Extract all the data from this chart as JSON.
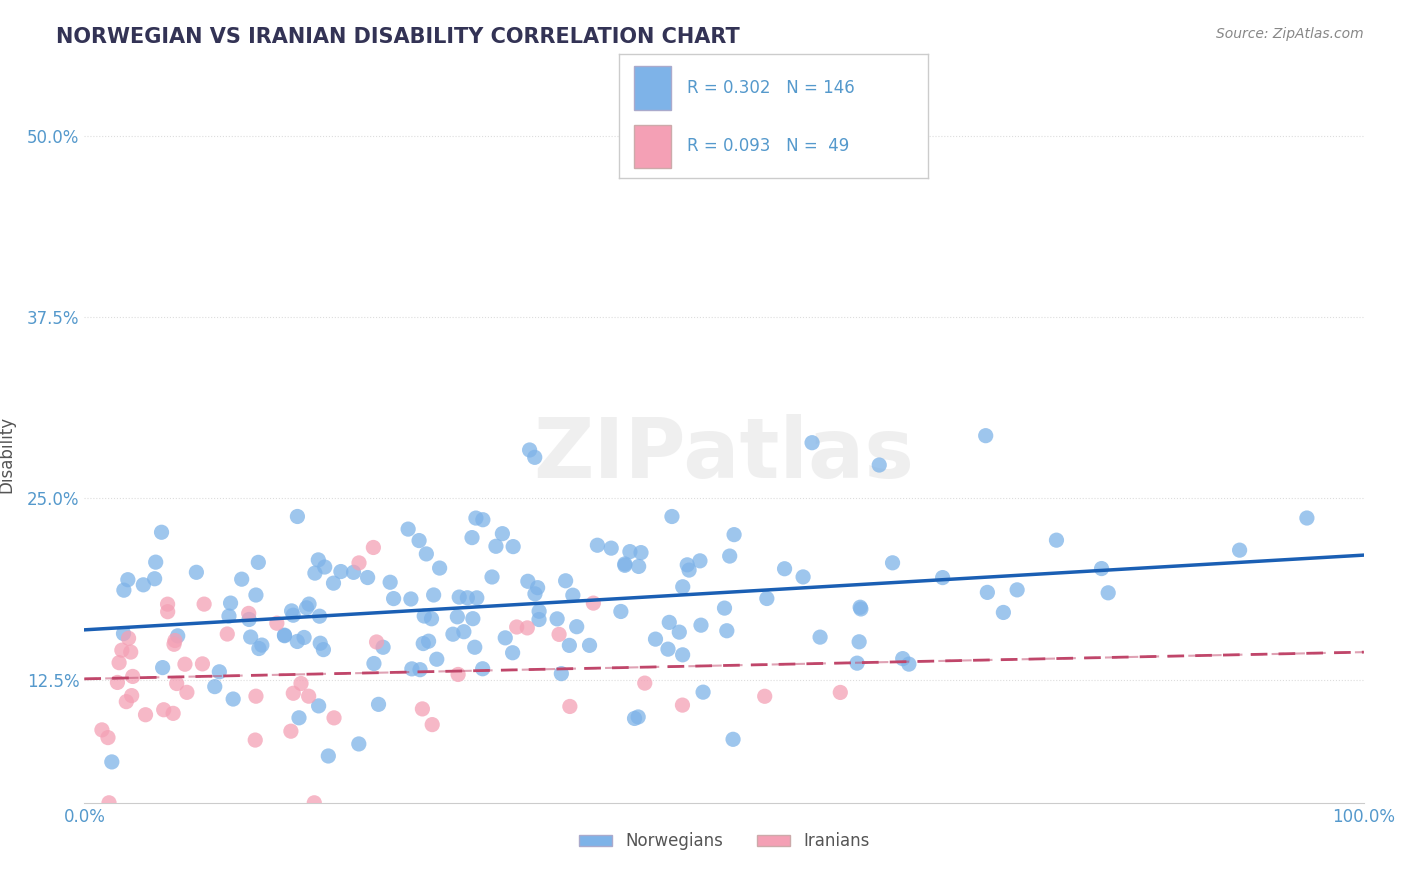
{
  "title": "NORWEGIAN VS IRANIAN DISABILITY CORRELATION CHART",
  "source": "Source: ZipAtlas.com",
  "ylabel": "Disability",
  "xlabel": "",
  "xlim": [
    0,
    1.0
  ],
  "ylim": [
    0.04,
    0.52
  ],
  "yticks": [
    0.125,
    0.25,
    0.375,
    0.5
  ],
  "ytick_labels": [
    "12.5%",
    "25.0%",
    "37.5%",
    "50.0%"
  ],
  "xticks": [
    0.0,
    0.1,
    0.2,
    0.3,
    0.4,
    0.5,
    0.6,
    0.7,
    0.8,
    0.9,
    1.0
  ],
  "xtick_labels": [
    "0.0%",
    "",
    "",
    "",
    "",
    "",
    "",
    "",
    "",
    "",
    "100.0%"
  ],
  "norwegian_color": "#7eb3e8",
  "iranian_color": "#f4a0b5",
  "norwegian_line_color": "#1a5fb4",
  "iranian_line_color": "#c0466a",
  "r_norwegian": 0.302,
  "n_norwegian": 146,
  "r_iranian": 0.093,
  "n_iranian": 49,
  "background_color": "#ffffff",
  "grid_color": "#dddddd",
  "title_color": "#333355",
  "axis_label_color": "#5599cc",
  "watermark": "ZIPatlas",
  "norwegians_seed": 42,
  "iranians_seed": 99
}
